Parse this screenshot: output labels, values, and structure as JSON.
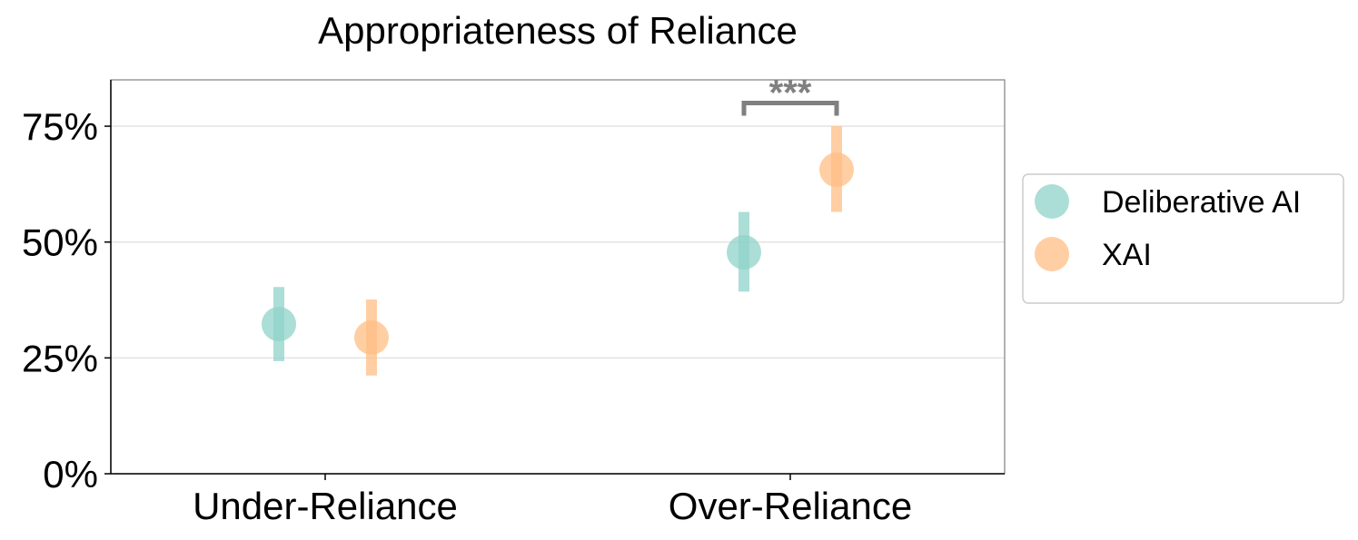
{
  "chart_data": {
    "type": "scatter",
    "title": "Appropriateness of Reliance",
    "xlabel": "",
    "ylabel": "",
    "categories": [
      "Under-Reliance",
      "Over-Reliance"
    ],
    "ylim": [
      0,
      85
    ],
    "yticks": [
      0,
      25,
      50,
      75
    ],
    "ytick_labels": [
      "0%",
      "25%",
      "50%",
      "75%"
    ],
    "grid": "horizontal",
    "legend_position": "right",
    "series": [
      {
        "name": "Deliberative AI",
        "color": "#8FD3C9",
        "values": [
          32.3,
          47.8
        ],
        "ci_low": [
          24.3,
          39.3
        ],
        "ci_high": [
          40.3,
          56.5
        ]
      },
      {
        "name": "XAI",
        "color": "#FFBE84",
        "values": [
          29.4,
          65.6
        ],
        "ci_low": [
          21.2,
          56.5
        ],
        "ci_high": [
          37.6,
          75.0
        ]
      }
    ],
    "annotations": [
      {
        "text": "***",
        "category": "Over-Reliance",
        "y": 80
      }
    ]
  }
}
